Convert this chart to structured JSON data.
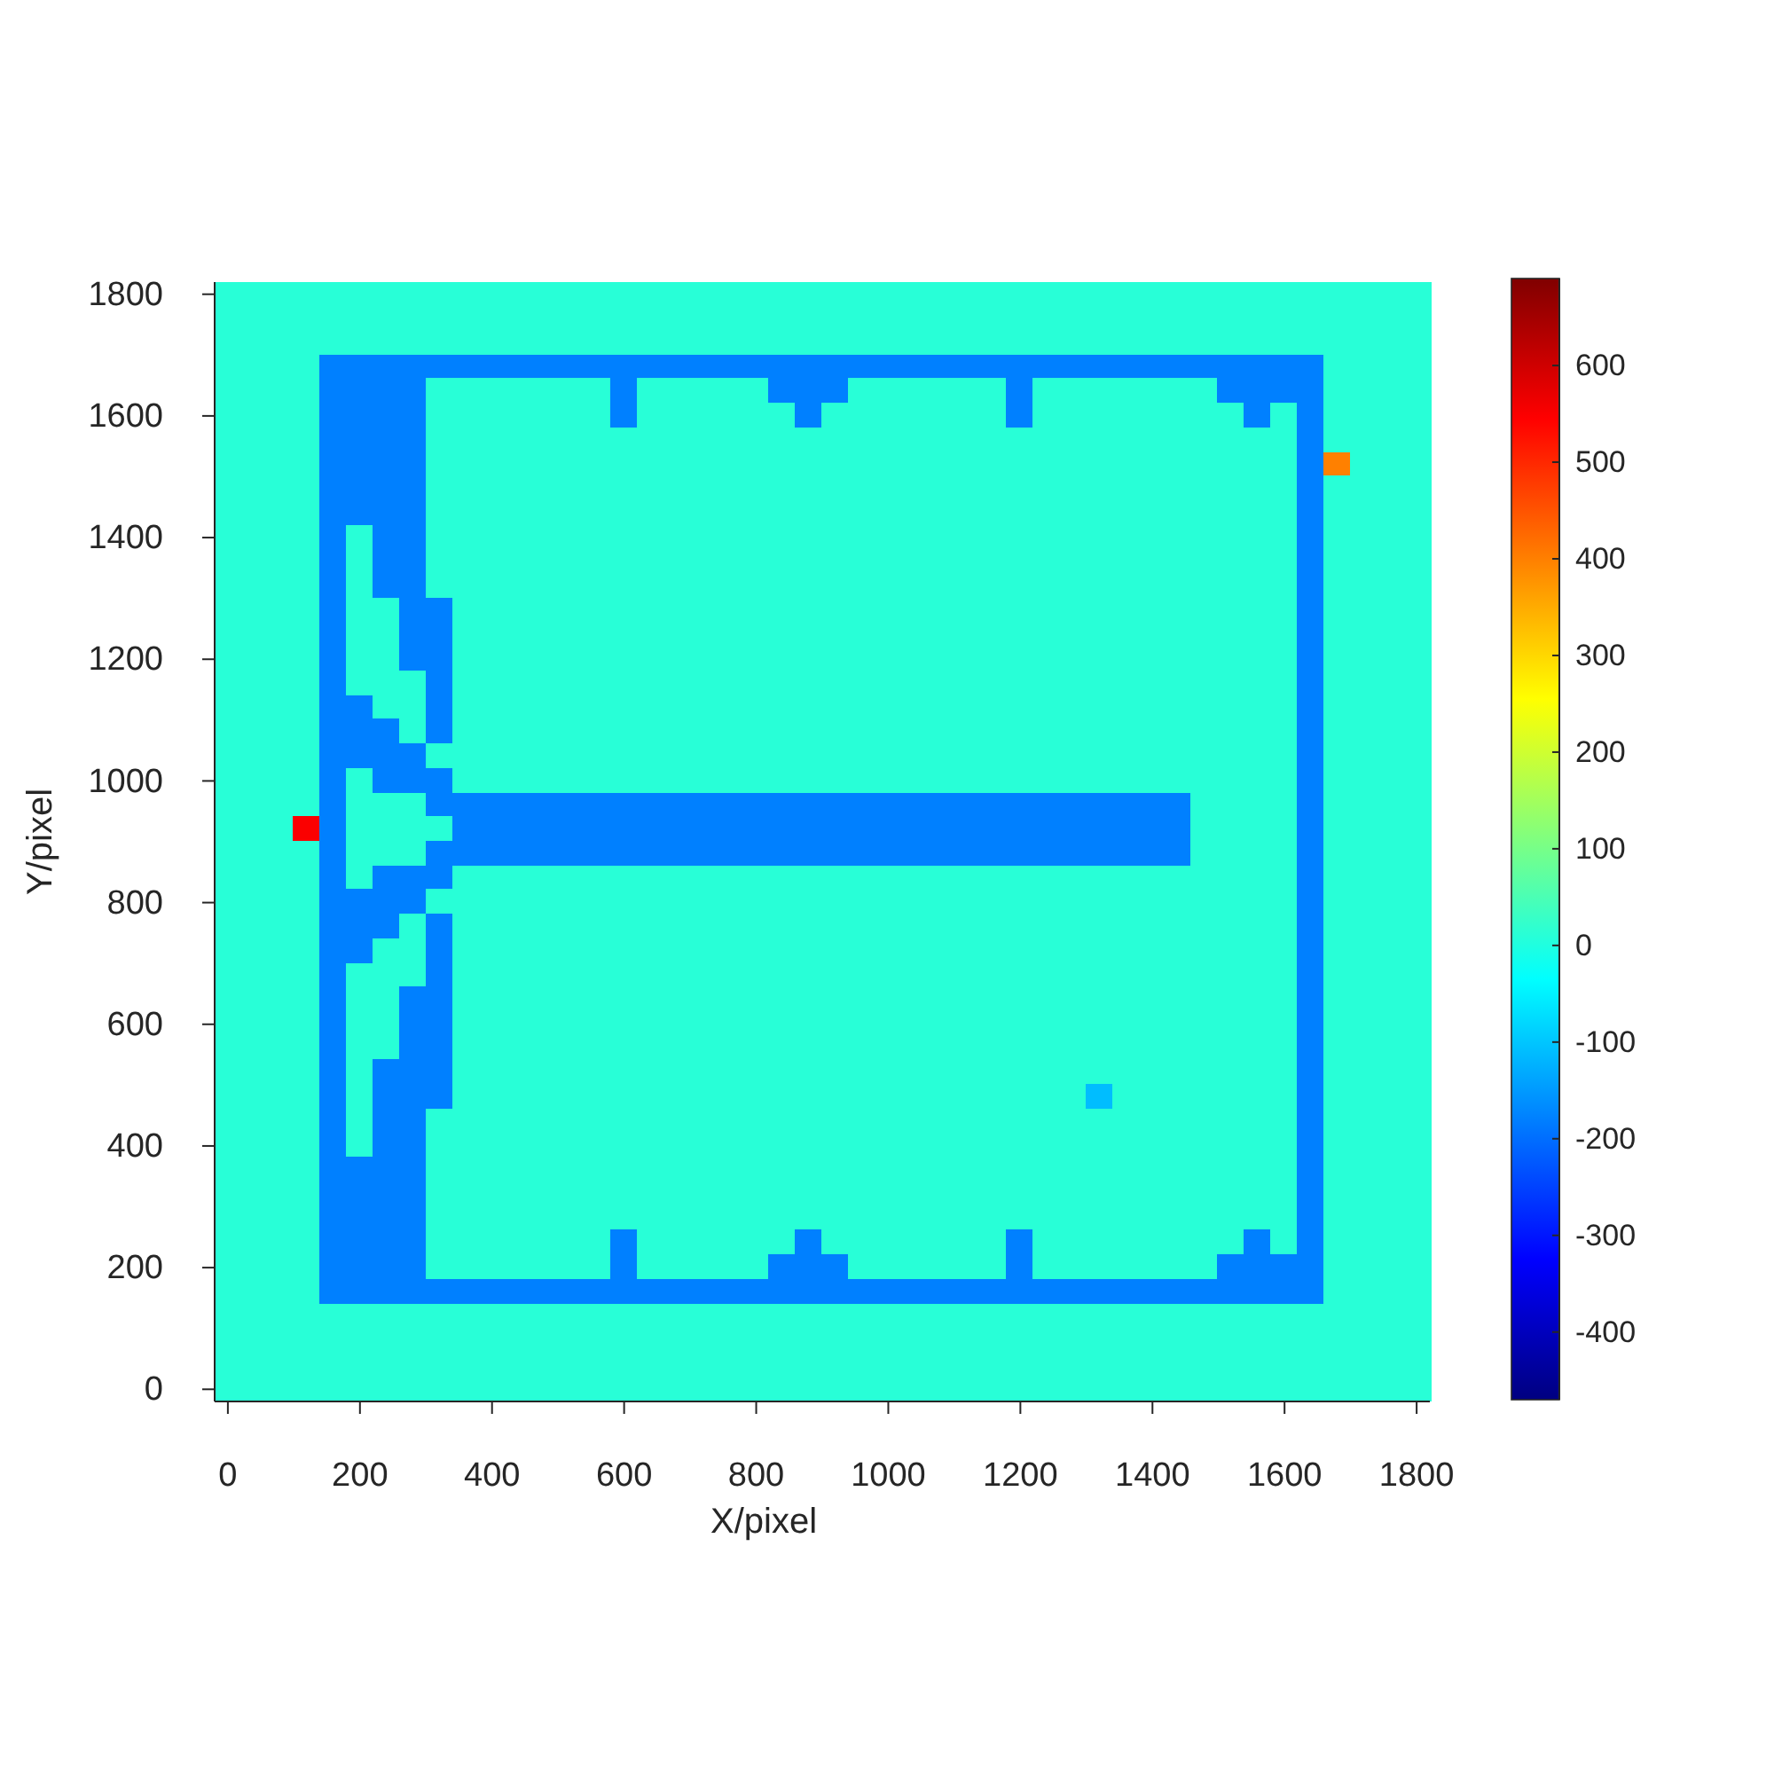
{
  "chart_data": {
    "type": "heatmap",
    "xlabel": "X/pixel",
    "ylabel": "Y/pixel",
    "clim": [
      -470,
      690
    ],
    "cticks": [
      -400,
      -300,
      -200,
      -100,
      0,
      100,
      200,
      300,
      400,
      500,
      600
    ],
    "categories": [
      "0",
      null,
      null,
      null,
      null,
      "200",
      null,
      null,
      null,
      null,
      "400",
      null,
      null,
      null,
      null,
      "600",
      null,
      null,
      null,
      null,
      "800",
      null,
      null,
      null,
      null,
      "1000",
      null,
      null,
      null,
      null,
      "1200",
      null,
      null,
      null,
      null,
      "1400",
      null,
      null,
      null,
      null,
      "1600",
      null,
      null,
      null,
      null,
      "1800"
    ],
    "y_categories": [
      "1800",
      null,
      null,
      null,
      null,
      "1600",
      null,
      null,
      null,
      null,
      "1400",
      null,
      null,
      null,
      null,
      "1200",
      null,
      null,
      null,
      null,
      "1000",
      null,
      null,
      null,
      null,
      "800",
      null,
      null,
      null,
      null,
      "600",
      null,
      null,
      null,
      null,
      "400",
      null,
      null,
      null,
      null,
      "200",
      null,
      null,
      null,
      null,
      "0"
    ],
    "cells": [
      [
        10,
        10,
        10,
        10,
        10,
        10,
        10,
        10,
        10,
        10,
        10,
        10,
        10,
        10,
        10,
        10,
        10,
        10,
        10,
        10,
        10,
        10,
        10,
        10,
        10,
        10,
        10,
        10,
        10,
        10,
        10,
        10,
        10,
        10,
        10,
        10,
        10,
        10,
        10,
        10,
        10,
        10,
        10,
        10,
        10,
        10
      ],
      [
        10,
        10,
        10,
        10,
        10,
        10,
        10,
        10,
        10,
        10,
        10,
        10,
        10,
        10,
        10,
        10,
        10,
        10,
        10,
        10,
        10,
        10,
        10,
        10,
        10,
        10,
        10,
        10,
        10,
        10,
        10,
        10,
        10,
        10,
        10,
        10,
        10,
        10,
        10,
        10,
        10,
        10,
        10,
        10,
        10,
        10
      ],
      [
        10,
        10,
        10,
        10,
        10,
        10,
        10,
        10,
        10,
        10,
        10,
        10,
        10,
        10,
        10,
        10,
        10,
        10,
        10,
        10,
        10,
        10,
        10,
        10,
        10,
        10,
        10,
        10,
        10,
        10,
        10,
        10,
        10,
        10,
        10,
        10,
        10,
        10,
        10,
        10,
        10,
        10,
        10,
        10,
        10,
        10
      ],
      [
        10,
        10,
        10,
        10,
        -180,
        -180,
        -180,
        -180,
        -180,
        -180,
        -180,
        -180,
        -180,
        -180,
        -180,
        -180,
        -180,
        -180,
        -180,
        -180,
        -180,
        -180,
        -180,
        -180,
        -180,
        -180,
        -180,
        -180,
        -180,
        -180,
        -180,
        -180,
        -180,
        -180,
        -180,
        -180,
        -180,
        -180,
        -180,
        -180,
        -180,
        -180,
        10,
        10,
        10,
        10
      ],
      [
        10,
        10,
        10,
        10,
        -180,
        -180,
        -180,
        -180,
        10,
        10,
        10,
        10,
        10,
        10,
        10,
        -180,
        10,
        10,
        10,
        10,
        10,
        -180,
        -180,
        -180,
        10,
        10,
        10,
        10,
        10,
        10,
        -180,
        10,
        10,
        10,
        10,
        10,
        10,
        10,
        -180,
        -180,
        -180,
        -180,
        10,
        10,
        10,
        10
      ],
      [
        10,
        10,
        10,
        10,
        -180,
        -180,
        -180,
        -180,
        10,
        10,
        10,
        10,
        10,
        10,
        10,
        -180,
        10,
        10,
        10,
        10,
        10,
        10,
        -180,
        10,
        10,
        10,
        10,
        10,
        10,
        10,
        -180,
        10,
        10,
        10,
        10,
        10,
        10,
        10,
        10,
        -180,
        10,
        -180,
        10,
        10,
        10,
        10
      ],
      [
        10,
        10,
        10,
        10,
        -180,
        -180,
        -180,
        -180,
        10,
        10,
        10,
        10,
        10,
        10,
        10,
        10,
        10,
        10,
        10,
        10,
        10,
        10,
        10,
        10,
        10,
        10,
        10,
        10,
        10,
        10,
        10,
        10,
        10,
        10,
        10,
        10,
        10,
        10,
        10,
        10,
        10,
        -180,
        10,
        10,
        10,
        10
      ],
      [
        10,
        10,
        10,
        10,
        -180,
        -180,
        -180,
        -180,
        10,
        10,
        10,
        10,
        10,
        10,
        10,
        10,
        10,
        10,
        10,
        10,
        10,
        10,
        10,
        10,
        10,
        10,
        10,
        10,
        10,
        10,
        10,
        10,
        10,
        10,
        10,
        10,
        10,
        10,
        10,
        10,
        10,
        -180,
        400,
        10,
        10,
        10
      ],
      [
        10,
        10,
        10,
        10,
        -180,
        -180,
        -180,
        -180,
        10,
        10,
        10,
        10,
        10,
        10,
        10,
        10,
        10,
        10,
        10,
        10,
        10,
        10,
        10,
        10,
        10,
        10,
        10,
        10,
        10,
        10,
        10,
        10,
        10,
        10,
        10,
        10,
        10,
        10,
        10,
        10,
        10,
        -180,
        10,
        10,
        10,
        10
      ],
      [
        10,
        10,
        10,
        10,
        -180,
        -180,
        -180,
        -180,
        10,
        10,
        10,
        10,
        10,
        10,
        10,
        10,
        10,
        10,
        10,
        10,
        10,
        10,
        10,
        10,
        10,
        10,
        10,
        10,
        10,
        10,
        10,
        10,
        10,
        10,
        10,
        10,
        10,
        10,
        10,
        10,
        10,
        -180,
        10,
        10,
        10,
        10
      ],
      [
        10,
        10,
        10,
        10,
        -180,
        10,
        -180,
        -180,
        10,
        10,
        10,
        10,
        10,
        10,
        10,
        10,
        10,
        10,
        10,
        10,
        10,
        10,
        10,
        10,
        10,
        10,
        10,
        10,
        10,
        10,
        10,
        10,
        10,
        10,
        10,
        10,
        10,
        10,
        10,
        10,
        10,
        -180,
        10,
        10,
        10,
        10
      ],
      [
        10,
        10,
        10,
        10,
        -180,
        10,
        -180,
        -180,
        10,
        10,
        10,
        10,
        10,
        10,
        10,
        10,
        10,
        10,
        10,
        10,
        10,
        10,
        10,
        10,
        10,
        10,
        10,
        10,
        10,
        10,
        10,
        10,
        10,
        10,
        10,
        10,
        10,
        10,
        10,
        10,
        10,
        -180,
        10,
        10,
        10,
        10
      ],
      [
        10,
        10,
        10,
        10,
        -180,
        10,
        -180,
        -180,
        10,
        10,
        10,
        10,
        10,
        10,
        10,
        10,
        10,
        10,
        10,
        10,
        10,
        10,
        10,
        10,
        10,
        10,
        10,
        10,
        10,
        10,
        10,
        10,
        10,
        10,
        10,
        10,
        10,
        10,
        10,
        10,
        10,
        -180,
        10,
        10,
        10,
        10
      ],
      [
        10,
        10,
        10,
        10,
        -180,
        10,
        10,
        -180,
        -180,
        10,
        10,
        10,
        10,
        10,
        10,
        10,
        10,
        10,
        10,
        10,
        10,
        10,
        10,
        10,
        10,
        10,
        10,
        10,
        10,
        10,
        10,
        10,
        10,
        10,
        10,
        10,
        10,
        10,
        10,
        10,
        10,
        -180,
        10,
        10,
        10,
        10
      ],
      [
        10,
        10,
        10,
        10,
        -180,
        10,
        10,
        -180,
        -180,
        10,
        10,
        10,
        10,
        10,
        10,
        10,
        10,
        10,
        10,
        10,
        10,
        10,
        10,
        10,
        10,
        10,
        10,
        10,
        10,
        10,
        10,
        10,
        10,
        10,
        10,
        10,
        10,
        10,
        10,
        10,
        10,
        -180,
        10,
        10,
        10,
        10
      ],
      [
        10,
        10,
        10,
        10,
        -180,
        10,
        10,
        -180,
        -180,
        10,
        10,
        10,
        10,
        10,
        10,
        10,
        10,
        10,
        10,
        10,
        10,
        10,
        10,
        10,
        10,
        10,
        10,
        10,
        10,
        10,
        10,
        10,
        10,
        10,
        10,
        10,
        10,
        10,
        10,
        10,
        10,
        -180,
        10,
        10,
        10,
        10
      ],
      [
        10,
        10,
        10,
        10,
        -180,
        10,
        10,
        10,
        -180,
        10,
        10,
        10,
        10,
        10,
        10,
        10,
        10,
        10,
        10,
        10,
        10,
        10,
        10,
        10,
        10,
        10,
        10,
        10,
        10,
        10,
        10,
        10,
        10,
        10,
        10,
        10,
        10,
        10,
        10,
        10,
        10,
        -180,
        10,
        10,
        10,
        10
      ],
      [
        10,
        10,
        10,
        10,
        -180,
        -180,
        10,
        10,
        -180,
        10,
        10,
        10,
        10,
        10,
        10,
        10,
        10,
        10,
        10,
        10,
        10,
        10,
        10,
        10,
        10,
        10,
        10,
        10,
        10,
        10,
        10,
        10,
        10,
        10,
        10,
        10,
        10,
        10,
        10,
        10,
        10,
        -180,
        10,
        10,
        10,
        10
      ],
      [
        10,
        10,
        10,
        10,
        -180,
        -180,
        -180,
        10,
        -180,
        10,
        10,
        10,
        10,
        10,
        10,
        10,
        10,
        10,
        10,
        10,
        10,
        10,
        10,
        10,
        10,
        10,
        10,
        10,
        10,
        10,
        10,
        10,
        10,
        10,
        10,
        10,
        10,
        10,
        10,
        10,
        10,
        -180,
        10,
        10,
        10,
        10
      ],
      [
        10,
        10,
        10,
        10,
        -180,
        -180,
        -180,
        -180,
        10,
        10,
        10,
        10,
        10,
        10,
        10,
        10,
        10,
        10,
        10,
        10,
        10,
        10,
        10,
        10,
        10,
        10,
        10,
        10,
        10,
        10,
        10,
        10,
        10,
        10,
        10,
        10,
        10,
        10,
        10,
        10,
        10,
        -180,
        10,
        10,
        10,
        10
      ],
      [
        10,
        10,
        10,
        10,
        -180,
        10,
        -180,
        -180,
        -180,
        10,
        10,
        10,
        10,
        10,
        10,
        10,
        10,
        10,
        10,
        10,
        10,
        10,
        10,
        10,
        10,
        10,
        10,
        10,
        10,
        10,
        10,
        10,
        10,
        10,
        10,
        10,
        10,
        10,
        10,
        10,
        10,
        -180,
        10,
        10,
        10,
        10
      ],
      [
        10,
        10,
        10,
        10,
        -180,
        10,
        10,
        10,
        -180,
        -180,
        -180,
        -180,
        -180,
        -180,
        -180,
        -180,
        -180,
        -180,
        -180,
        -180,
        -180,
        -180,
        -180,
        -180,
        -180,
        -180,
        -180,
        -180,
        -180,
        -180,
        -180,
        -180,
        -180,
        -180,
        -180,
        -180,
        -180,
        10,
        10,
        10,
        10,
        -180,
        10,
        10,
        10,
        10
      ],
      [
        10,
        10,
        10,
        550,
        -180,
        10,
        10,
        10,
        10,
        -180,
        -180,
        -180,
        -180,
        -180,
        -180,
        -180,
        -180,
        -180,
        -180,
        -180,
        -180,
        -180,
        -180,
        -180,
        -180,
        -180,
        -180,
        -180,
        -180,
        -180,
        -180,
        -180,
        -180,
        -180,
        -180,
        -180,
        -180,
        10,
        10,
        10,
        10,
        -180,
        10,
        10,
        10,
        10
      ],
      [
        10,
        10,
        10,
        10,
        -180,
        10,
        10,
        10,
        -180,
        -180,
        -180,
        -180,
        -180,
        -180,
        -180,
        -180,
        -180,
        -180,
        -180,
        -180,
        -180,
        -180,
        -180,
        -180,
        -180,
        -180,
        -180,
        -180,
        -180,
        -180,
        -180,
        -180,
        -180,
        -180,
        -180,
        -180,
        -180,
        10,
        10,
        10,
        10,
        -180,
        10,
        10,
        10,
        10
      ],
      [
        10,
        10,
        10,
        10,
        -180,
        10,
        -180,
        -180,
        -180,
        10,
        10,
        10,
        10,
        10,
        10,
        10,
        10,
        10,
        10,
        10,
        10,
        10,
        10,
        10,
        10,
        10,
        10,
        10,
        10,
        10,
        10,
        10,
        10,
        10,
        10,
        10,
        10,
        10,
        10,
        10,
        10,
        -180,
        10,
        10,
        10,
        10
      ],
      [
        10,
        10,
        10,
        10,
        -180,
        -180,
        -180,
        -180,
        10,
        10,
        10,
        10,
        10,
        10,
        10,
        10,
        10,
        10,
        10,
        10,
        10,
        10,
        10,
        10,
        10,
        10,
        10,
        10,
        10,
        10,
        10,
        10,
        10,
        10,
        10,
        10,
        10,
        10,
        10,
        10,
        10,
        -180,
        10,
        10,
        10,
        10
      ],
      [
        10,
        10,
        10,
        10,
        -180,
        -180,
        -180,
        10,
        -180,
        10,
        10,
        10,
        10,
        10,
        10,
        10,
        10,
        10,
        10,
        10,
        10,
        10,
        10,
        10,
        10,
        10,
        10,
        10,
        10,
        10,
        10,
        10,
        10,
        10,
        10,
        10,
        10,
        10,
        10,
        10,
        10,
        -180,
        10,
        10,
        10,
        10
      ],
      [
        10,
        10,
        10,
        10,
        -180,
        -180,
        10,
        10,
        -180,
        10,
        10,
        10,
        10,
        10,
        10,
        10,
        10,
        10,
        10,
        10,
        10,
        10,
        10,
        10,
        10,
        10,
        10,
        10,
        10,
        10,
        10,
        10,
        10,
        10,
        10,
        10,
        10,
        10,
        10,
        10,
        10,
        -180,
        10,
        10,
        10,
        10
      ],
      [
        10,
        10,
        10,
        10,
        -180,
        10,
        10,
        10,
        -180,
        10,
        10,
        10,
        10,
        10,
        10,
        10,
        10,
        10,
        10,
        10,
        10,
        10,
        10,
        10,
        10,
        10,
        10,
        10,
        10,
        10,
        10,
        10,
        10,
        10,
        10,
        10,
        10,
        10,
        10,
        10,
        10,
        -180,
        10,
        10,
        10,
        10
      ],
      [
        10,
        10,
        10,
        10,
        -180,
        10,
        10,
        -180,
        -180,
        10,
        10,
        10,
        10,
        10,
        10,
        10,
        10,
        10,
        10,
        10,
        10,
        10,
        10,
        10,
        10,
        10,
        10,
        10,
        10,
        10,
        10,
        10,
        10,
        10,
        10,
        10,
        10,
        10,
        10,
        10,
        10,
        -180,
        10,
        10,
        10,
        10
      ],
      [
        10,
        10,
        10,
        10,
        -180,
        10,
        10,
        -180,
        -180,
        10,
        10,
        10,
        10,
        10,
        10,
        10,
        10,
        10,
        10,
        10,
        10,
        10,
        10,
        10,
        10,
        10,
        10,
        10,
        10,
        10,
        10,
        10,
        10,
        10,
        10,
        10,
        10,
        10,
        10,
        10,
        10,
        -180,
        10,
        10,
        10,
        10
      ],
      [
        10,
        10,
        10,
        10,
        -180,
        10,
        10,
        -180,
        -180,
        10,
        10,
        10,
        10,
        10,
        10,
        10,
        10,
        10,
        10,
        10,
        10,
        10,
        10,
        10,
        10,
        10,
        10,
        10,
        10,
        10,
        10,
        10,
        10,
        10,
        10,
        10,
        10,
        10,
        10,
        10,
        10,
        -180,
        10,
        10,
        10,
        10
      ],
      [
        10,
        10,
        10,
        10,
        -180,
        10,
        -180,
        -180,
        -180,
        10,
        10,
        10,
        10,
        10,
        10,
        10,
        10,
        10,
        10,
        10,
        10,
        10,
        10,
        10,
        10,
        10,
        10,
        10,
        10,
        10,
        10,
        10,
        10,
        10,
        10,
        10,
        10,
        10,
        10,
        10,
        10,
        -180,
        10,
        10,
        10,
        10
      ],
      [
        10,
        10,
        10,
        10,
        -180,
        10,
        -180,
        -180,
        -180,
        10,
        10,
        10,
        10,
        10,
        10,
        10,
        10,
        10,
        10,
        10,
        10,
        10,
        10,
        10,
        10,
        10,
        10,
        10,
        10,
        10,
        10,
        10,
        10,
        -110,
        10,
        10,
        10,
        10,
        10,
        10,
        10,
        -180,
        10,
        10,
        10,
        10
      ],
      [
        10,
        10,
        10,
        10,
        -180,
        10,
        -180,
        -180,
        10,
        10,
        10,
        10,
        10,
        10,
        10,
        10,
        10,
        10,
        10,
        10,
        10,
        10,
        10,
        10,
        10,
        10,
        10,
        10,
        10,
        10,
        10,
        10,
        10,
        10,
        10,
        10,
        10,
        10,
        10,
        10,
        10,
        -180,
        10,
        10,
        10,
        10
      ],
      [
        10,
        10,
        10,
        10,
        -180,
        10,
        -180,
        -180,
        10,
        10,
        10,
        10,
        10,
        10,
        10,
        10,
        10,
        10,
        10,
        10,
        10,
        10,
        10,
        10,
        10,
        10,
        10,
        10,
        10,
        10,
        10,
        10,
        10,
        10,
        10,
        10,
        10,
        10,
        10,
        10,
        10,
        -180,
        10,
        10,
        10,
        10
      ],
      [
        10,
        10,
        10,
        10,
        -180,
        -180,
        -180,
        -180,
        10,
        10,
        10,
        10,
        10,
        10,
        10,
        10,
        10,
        10,
        10,
        10,
        10,
        10,
        10,
        10,
        10,
        10,
        10,
        10,
        10,
        10,
        10,
        10,
        10,
        10,
        10,
        10,
        10,
        10,
        10,
        10,
        10,
        -180,
        10,
        10,
        10,
        10
      ],
      [
        10,
        10,
        10,
        10,
        -180,
        -180,
        -180,
        -180,
        10,
        10,
        10,
        10,
        10,
        10,
        10,
        10,
        10,
        10,
        10,
        10,
        10,
        10,
        10,
        10,
        10,
        10,
        10,
        10,
        10,
        10,
        10,
        10,
        10,
        10,
        10,
        10,
        10,
        10,
        10,
        10,
        10,
        -180,
        10,
        10,
        10,
        10
      ],
      [
        10,
        10,
        10,
        10,
        -180,
        -180,
        -180,
        -180,
        10,
        10,
        10,
        10,
        10,
        10,
        10,
        10,
        10,
        10,
        10,
        10,
        10,
        10,
        10,
        10,
        10,
        10,
        10,
        10,
        10,
        10,
        10,
        10,
        10,
        10,
        10,
        10,
        10,
        10,
        10,
        10,
        10,
        -180,
        10,
        10,
        10,
        10
      ],
      [
        10,
        10,
        10,
        10,
        -180,
        -180,
        -180,
        -180,
        10,
        10,
        10,
        10,
        10,
        10,
        10,
        -180,
        10,
        10,
        10,
        10,
        10,
        10,
        -180,
        10,
        10,
        10,
        10,
        10,
        10,
        10,
        -180,
        10,
        10,
        10,
        10,
        10,
        10,
        10,
        10,
        -180,
        10,
        -180,
        10,
        10,
        10,
        10
      ],
      [
        10,
        10,
        10,
        10,
        -180,
        -180,
        -180,
        -180,
        10,
        10,
        10,
        10,
        10,
        10,
        10,
        -180,
        10,
        10,
        10,
        10,
        10,
        -180,
        -180,
        -180,
        10,
        10,
        10,
        10,
        10,
        10,
        -180,
        10,
        10,
        10,
        10,
        10,
        10,
        10,
        -180,
        -180,
        -180,
        -180,
        10,
        10,
        10,
        10
      ],
      [
        10,
        10,
        10,
        10,
        -180,
        -180,
        -180,
        -180,
        -180,
        -180,
        -180,
        -180,
        -180,
        -180,
        -180,
        -180,
        -180,
        -180,
        -180,
        -180,
        -180,
        -180,
        -180,
        -180,
        -180,
        -180,
        -180,
        -180,
        -180,
        -180,
        -180,
        -180,
        -180,
        -180,
        -180,
        -180,
        -180,
        -180,
        -180,
        -180,
        -180,
        -180,
        10,
        10,
        10,
        10
      ],
      [
        10,
        10,
        10,
        10,
        10,
        10,
        10,
        10,
        10,
        10,
        10,
        10,
        10,
        10,
        10,
        10,
        10,
        10,
        10,
        10,
        10,
        10,
        10,
        10,
        10,
        10,
        10,
        10,
        10,
        10,
        10,
        10,
        10,
        10,
        10,
        10,
        10,
        10,
        10,
        10,
        10,
        10,
        10,
        10,
        10,
        10
      ],
      [
        10,
        10,
        10,
        10,
        10,
        10,
        10,
        10,
        10,
        10,
        10,
        10,
        10,
        10,
        10,
        10,
        10,
        10,
        10,
        10,
        10,
        10,
        10,
        10,
        10,
        10,
        10,
        10,
        10,
        10,
        10,
        10,
        10,
        10,
        10,
        10,
        10,
        10,
        10,
        10,
        10,
        10,
        10,
        10,
        10,
        10
      ],
      [
        10,
        10,
        10,
        10,
        10,
        10,
        10,
        10,
        10,
        10,
        10,
        10,
        10,
        10,
        10,
        10,
        10,
        10,
        10,
        10,
        10,
        10,
        10,
        10,
        10,
        10,
        10,
        10,
        10,
        10,
        10,
        10,
        10,
        10,
        10,
        10,
        10,
        10,
        10,
        10,
        10,
        10,
        10,
        10,
        10,
        10
      ],
      [
        10,
        10,
        10,
        10,
        10,
        10,
        10,
        10,
        10,
        10,
        10,
        10,
        10,
        10,
        10,
        10,
        10,
        10,
        10,
        10,
        10,
        10,
        10,
        10,
        10,
        10,
        10,
        10,
        10,
        10,
        10,
        10,
        10,
        10,
        10,
        10,
        10,
        10,
        10,
        10,
        10,
        10,
        10,
        10,
        10,
        10
      ]
    ]
  }
}
